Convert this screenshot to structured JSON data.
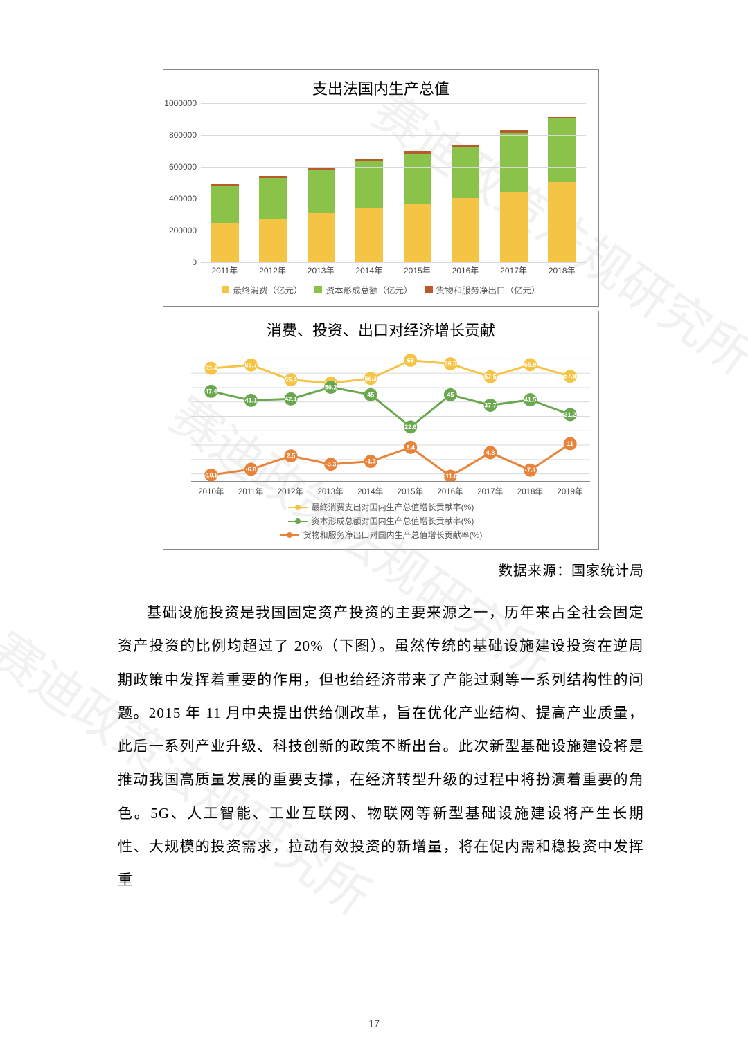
{
  "watermark_text": "赛迪政策法规研究所",
  "chart1": {
    "title": "支出法国内生产总值",
    "type": "stacked-bar",
    "categories": [
      "2011年",
      "2012年",
      "2013年",
      "2014年",
      "2015年",
      "2016年",
      "2017年",
      "2018年"
    ],
    "ylim": [
      0,
      1000000
    ],
    "ytick_step": 200000,
    "yticks": [
      "0",
      "200000",
      "400000",
      "600000",
      "800000",
      "1000000"
    ],
    "series": [
      {
        "name": "最终消费（亿元）",
        "color": "#f6c444",
        "values": [
          245000,
          270000,
          305000,
          335000,
          365000,
          400000,
          440000,
          500000
        ]
      },
      {
        "name": "资本形成总额（亿元）",
        "color": "#8bc34a",
        "values": [
          230000,
          255000,
          275000,
          295000,
          310000,
          320000,
          370000,
          400000
        ]
      },
      {
        "name": "货物和服务净出口（亿元）",
        "color": "#b85b2a",
        "values": [
          12000,
          13000,
          14000,
          16000,
          20000,
          15000,
          15000,
          10000
        ]
      }
    ],
    "background_color": "#ffffff",
    "grid_color": "#d9d9d9",
    "title_fontsize": 22,
    "label_fontsize": 12
  },
  "chart2": {
    "title": "消费、投资、出口对经济增长贡献",
    "type": "line",
    "categories": [
      "2010年",
      "2011年",
      "2012年",
      "2013年",
      "2014年",
      "2015年",
      "2016年",
      "2017年",
      "2018年",
      "2019年"
    ],
    "ylim": [
      -15,
      75
    ],
    "series": [
      {
        "name": "最终消费支出对国内生产总值增长贡献率(%)",
        "color": "#f6c444",
        "values": [
          63.4,
          65.7,
          55.4,
          53.1,
          56.3,
          69,
          66.5,
          57.5,
          65.9,
          57.8
        ]
      },
      {
        "name": "资本形成总额对国内生产总值增长贡献率(%)",
        "color": "#6aa84f",
        "values": [
          47.4,
          41.1,
          42.1,
          50.2,
          45,
          22.6,
          45,
          37.7,
          41.5,
          31.2
        ]
      },
      {
        "name": "货物和服务净出口对国内生产总值增长贡献率(%)",
        "color": "#e8833a",
        "values": [
          -10.8,
          -6.8,
          2.5,
          -3.3,
          -1.3,
          8.4,
          -11.6,
          4.8,
          -7.4,
          11
        ]
      }
    ],
    "marker_radius": 9.5,
    "line_width": 3,
    "background_color": "#ffffff",
    "grid_color": "#d9d9d9",
    "title_fontsize": 22,
    "label_fontsize": 12
  },
  "source_label": "数据来源：国家统计局",
  "body": "基础设施投资是我国固定资产投资的主要来源之一，历年来占全社会固定资产投资的比例均超过了 20%（下图）。虽然传统的基础设施建设投资在逆周期政策中发挥着重要的作用，但也给经济带来了产能过剩等一系列结构性的问题。2015 年 11 月中央提出供给侧改革，旨在优化产业结构、提高产业质量，此后一系列产业升级、科技创新的政策不断出台。此次新型基础设施建设将是推动我国高质量发展的重要支撑，在经济转型升级的过程中将扮演着重要的角色。5G、人工智能、工业互联网、物联网等新型基础设施建设将产生长期性、大规模的投资需求，拉动有效投资的新增量，将在促内需和稳投资中发挥重",
  "page_number": "17"
}
